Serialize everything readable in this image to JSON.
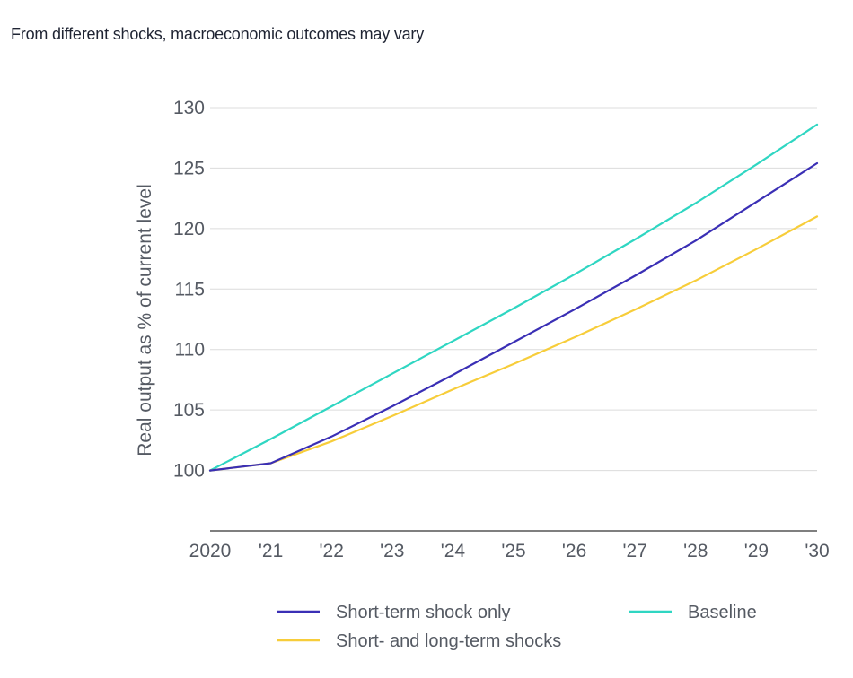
{
  "chart_data": {
    "type": "line",
    "title": "From different shocks, macroeconomic outcomes may vary",
    "xlabel": "",
    "ylabel": "Real output as % of current level",
    "x": [
      2020,
      2021,
      2022,
      2023,
      2024,
      2025,
      2026,
      2027,
      2028,
      2029,
      2030
    ],
    "x_tick_labels": [
      "2020",
      "'21",
      "'22",
      "'23",
      "'24",
      "'25",
      "'26",
      "'27",
      "'28",
      "'29",
      "'30"
    ],
    "y_ticks": [
      100,
      105,
      110,
      115,
      120,
      125,
      130
    ],
    "ylim": [
      95,
      130
    ],
    "xlim": [
      2020,
      2030
    ],
    "grid": "horizontal",
    "legend_position": "bottom",
    "series": [
      {
        "name": "Short-term shock only",
        "color": "#3a2fb5",
        "values": [
          100,
          100.6,
          102.8,
          105.3,
          107.9,
          110.6,
          113.3,
          116.1,
          119.0,
          122.2,
          125.4
        ]
      },
      {
        "name": "Baseline",
        "color": "#2fd6c2",
        "values": [
          100,
          102.6,
          105.3,
          108.0,
          110.7,
          113.4,
          116.2,
          119.1,
          122.1,
          125.3,
          128.6
        ]
      },
      {
        "name": "Short- and long-term shocks",
        "color": "#f7cd3a",
        "values": [
          100,
          100.6,
          102.4,
          104.5,
          106.7,
          108.8,
          111.0,
          113.3,
          115.7,
          118.3,
          121.0
        ]
      }
    ]
  }
}
